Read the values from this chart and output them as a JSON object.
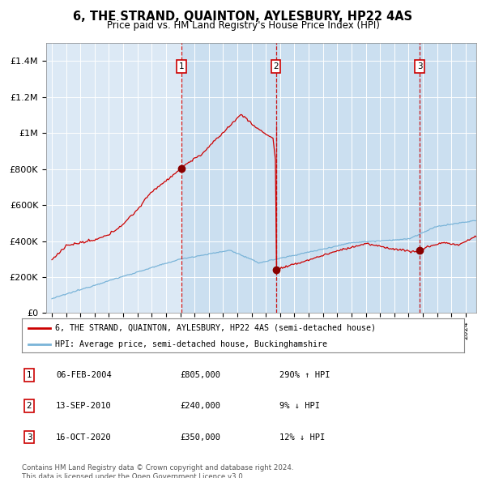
{
  "title": "6, THE STRAND, QUAINTON, AYLESBURY, HP22 4AS",
  "subtitle": "Price paid vs. HM Land Registry's House Price Index (HPI)",
  "bg_color": "#dce9f5",
  "hpi_color": "#7ab4d8",
  "price_color": "#cc0000",
  "sale_marker_color": "#880000",
  "dashed_line_color": "#cc0000",
  "ylim": [
    0,
    1500000
  ],
  "yticks": [
    0,
    200000,
    400000,
    600000,
    800000,
    1000000,
    1200000,
    1400000
  ],
  "ylabel_texts": [
    "£0",
    "£200K",
    "£400K",
    "£600K",
    "£800K",
    "£1M",
    "£1.2M",
    "£1.4M"
  ],
  "sale_dates": [
    2004.09,
    2010.7,
    2020.79
  ],
  "sale_prices": [
    805000,
    240000,
    350000
  ],
  "sale_labels": [
    "1",
    "2",
    "3"
  ],
  "legend_entries": [
    "6, THE STRAND, QUAINTON, AYLESBURY, HP22 4AS (semi-detached house)",
    "HPI: Average price, semi-detached house, Buckinghamshire"
  ],
  "table_rows": [
    {
      "num": "1",
      "date": "06-FEB-2004",
      "price": "£805,000",
      "change": "290% ↑ HPI"
    },
    {
      "num": "2",
      "date": "13-SEP-2010",
      "price": "£240,000",
      "change": "9% ↓ HPI"
    },
    {
      "num": "3",
      "date": "16-OCT-2020",
      "price": "£350,000",
      "change": "12% ↓ HPI"
    }
  ],
  "footnote": "Contains HM Land Registry data © Crown copyright and database right 2024.\nThis data is licensed under the Open Government Licence v3.0."
}
